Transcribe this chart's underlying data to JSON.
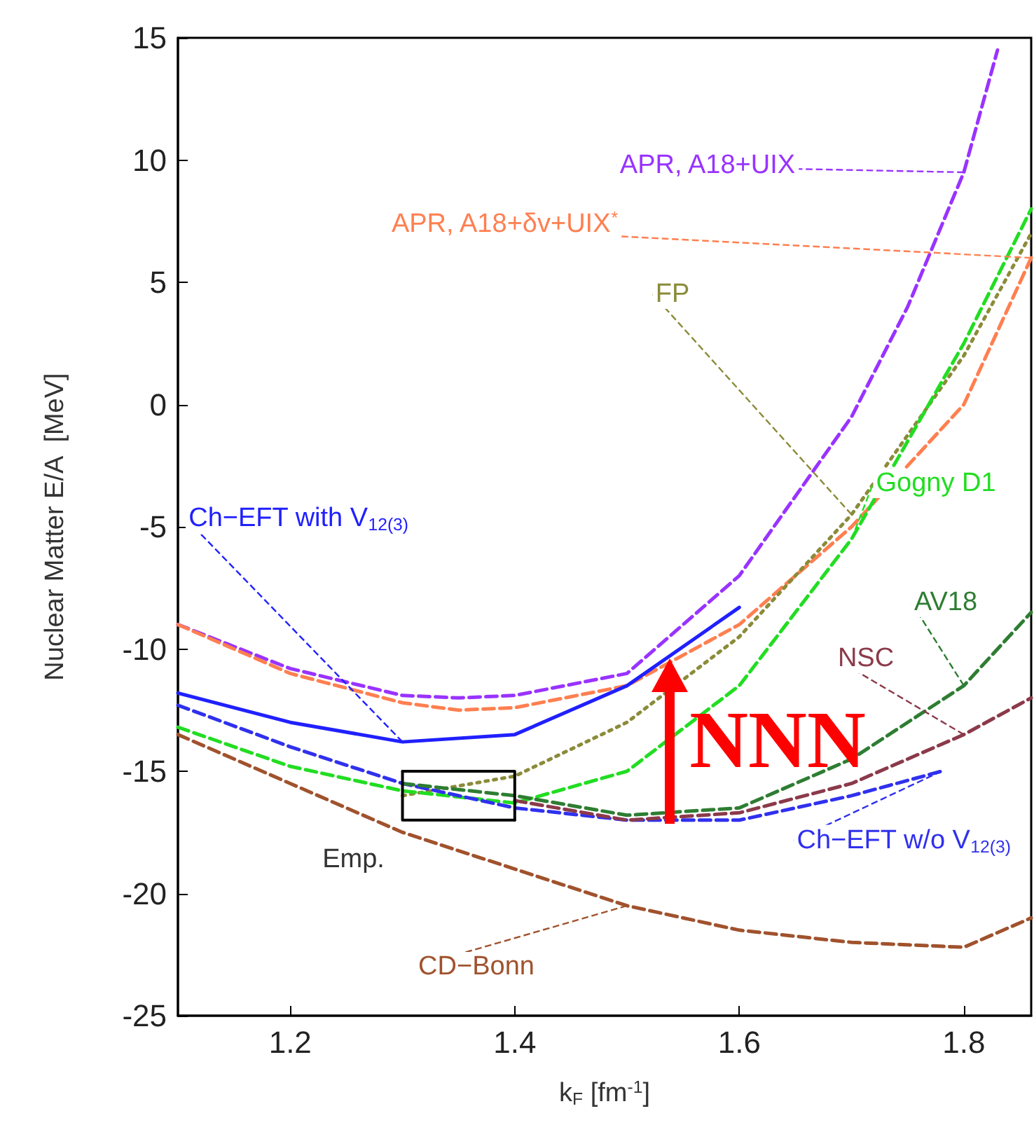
{
  "chart_data": {
    "type": "line",
    "xlabel": "k$_{F}$ [fm$^{-1}$]",
    "ylabel": "Nuclear Matter E/A  [MeV]",
    "xlim": [
      1.1,
      1.86
    ],
    "ylim": [
      -25,
      15
    ],
    "xticks": [
      1.2,
      1.4,
      1.6,
      1.8
    ],
    "yticks": [
      -25,
      -20,
      -15,
      -10,
      -5,
      0,
      5,
      10,
      15
    ],
    "grid": false,
    "legend": false,
    "marker": "none",
    "series": [
      {
        "name": "APR, A18+UIX",
        "color": "#9933ff",
        "line_style": "dashed",
        "x": [
          1.1,
          1.2,
          1.3,
          1.35,
          1.4,
          1.5,
          1.6,
          1.7,
          1.75,
          1.8,
          1.83
        ],
        "values": [
          -9,
          -10.8,
          -11.9,
          -12,
          -11.9,
          -11,
          -7,
          -0.5,
          4,
          9.5,
          14.5
        ]
      },
      {
        "name": "APR, A18+δv+UIX$^{*}$",
        "color": "#ff7f50",
        "line_style": "dashed",
        "x": [
          1.1,
          1.2,
          1.3,
          1.35,
          1.4,
          1.5,
          1.6,
          1.7,
          1.8,
          1.86
        ],
        "values": [
          -9,
          -11,
          -12.2,
          -12.5,
          -12.4,
          -11.5,
          -9,
          -5,
          0,
          6
        ]
      },
      {
        "name": "FP",
        "color": "#8b8b3a",
        "line_style": "dotted",
        "x": [
          1.3,
          1.4,
          1.5,
          1.6,
          1.7,
          1.8,
          1.86
        ],
        "values": [
          -16,
          -15.2,
          -13,
          -9.5,
          -4.5,
          2,
          7
        ]
      },
      {
        "name": "Gogny D1",
        "color": "#22dd22",
        "line_style": "dashed",
        "x": [
          1.1,
          1.2,
          1.3,
          1.4,
          1.5,
          1.6,
          1.7,
          1.8,
          1.86
        ],
        "values": [
          -13.2,
          -14.8,
          -15.8,
          -16.3,
          -15,
          -11.5,
          -5.5,
          2.5,
          8
        ]
      },
      {
        "name": "Ch−EFT with V$_{12(3)}$",
        "color": "#2020ff",
        "line_style": "solid",
        "x": [
          1.1,
          1.2,
          1.3,
          1.4,
          1.5,
          1.6
        ],
        "values": [
          -11.8,
          -13,
          -13.8,
          -13.5,
          -11.5,
          -8.3
        ]
      },
      {
        "name": "Ch−EFT w/o V$_{12(3)}$",
        "color": "#3030ee",
        "line_style": "dashed",
        "x": [
          1.1,
          1.2,
          1.3,
          1.4,
          1.5,
          1.6,
          1.7,
          1.78
        ],
        "values": [
          -12.3,
          -14,
          -15.5,
          -16.5,
          -17,
          -17,
          -16,
          -15
        ]
      },
      {
        "name": "AV18",
        "color": "#2e7d32",
        "line_style": "dashed",
        "x": [
          1.3,
          1.4,
          1.5,
          1.6,
          1.7,
          1.8,
          1.86
        ],
        "values": [
          -15.5,
          -16,
          -16.8,
          -16.5,
          -14.5,
          -11.5,
          -8.5
        ]
      },
      {
        "name": "NSC",
        "color": "#8b3a4a",
        "line_style": "dashed",
        "x": [
          1.4,
          1.5,
          1.6,
          1.7,
          1.8,
          1.86
        ],
        "values": [
          -16.2,
          -17,
          -16.7,
          -15.5,
          -13.5,
          -12
        ]
      },
      {
        "name": "CD−Bonn",
        "color": "#a0522d",
        "line_style": "dashed",
        "x": [
          1.1,
          1.2,
          1.3,
          1.4,
          1.5,
          1.6,
          1.7,
          1.8,
          1.86
        ],
        "values": [
          -13.5,
          -15.5,
          -17.5,
          -19,
          -20.5,
          -21.5,
          -22,
          -22.2,
          -21
        ]
      },
      {
        "color": "#000000",
        "line_style": "solid",
        "x": [
          1.3,
          1.4,
          1.4
        ],
        "values": [
          -15,
          -15,
          -17
        ]
      },
      {
        "color": "#000000",
        "line_style": "solid",
        "x": [
          1.3,
          1.3,
          1.4
        ],
        "values": [
          -15,
          -17,
          -17
        ]
      }
    ],
    "annotations": [
      {
        "text": "Emp.",
        "x": 1.3,
        "y": -17
      },
      "NNN"
    ]
  }
}
